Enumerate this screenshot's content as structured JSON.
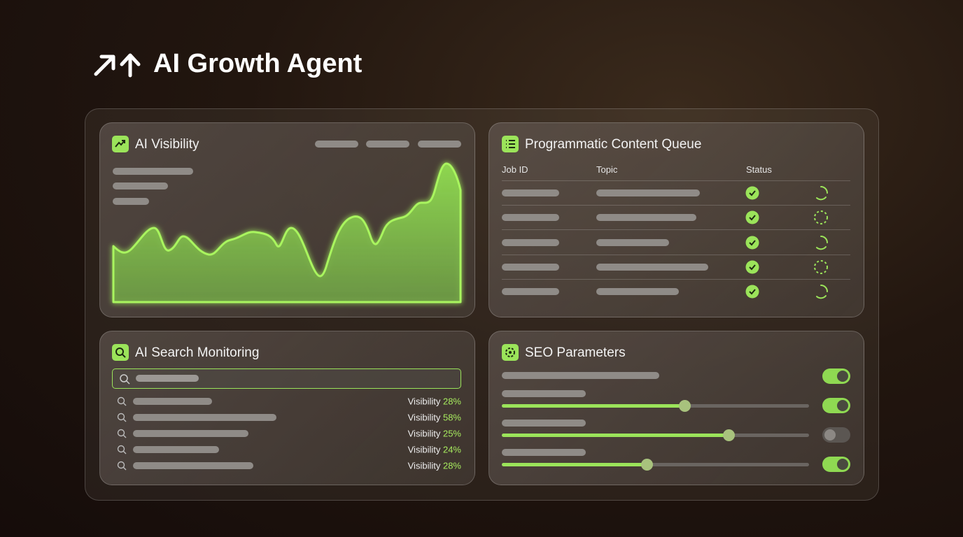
{
  "header": {
    "title": "AI Growth Agent"
  },
  "panels": {
    "visibility": {
      "title": "AI Visibility"
    },
    "queue": {
      "title": "Programmatic Content Queue",
      "columns": [
        "Job ID",
        "Topic",
        "Status"
      ]
    },
    "search": {
      "title": "AI Search Monitoring",
      "results": [
        {
          "label": "Visibility",
          "value": "28%"
        },
        {
          "label": "Visibility",
          "value": "58%"
        },
        {
          "label": "Visibility",
          "value": "25%"
        },
        {
          "label": "Visibility",
          "value": "24%"
        },
        {
          "label": "Visibility",
          "value": "28%"
        }
      ]
    },
    "seo": {
      "title": "SEO Parameters"
    }
  }
}
